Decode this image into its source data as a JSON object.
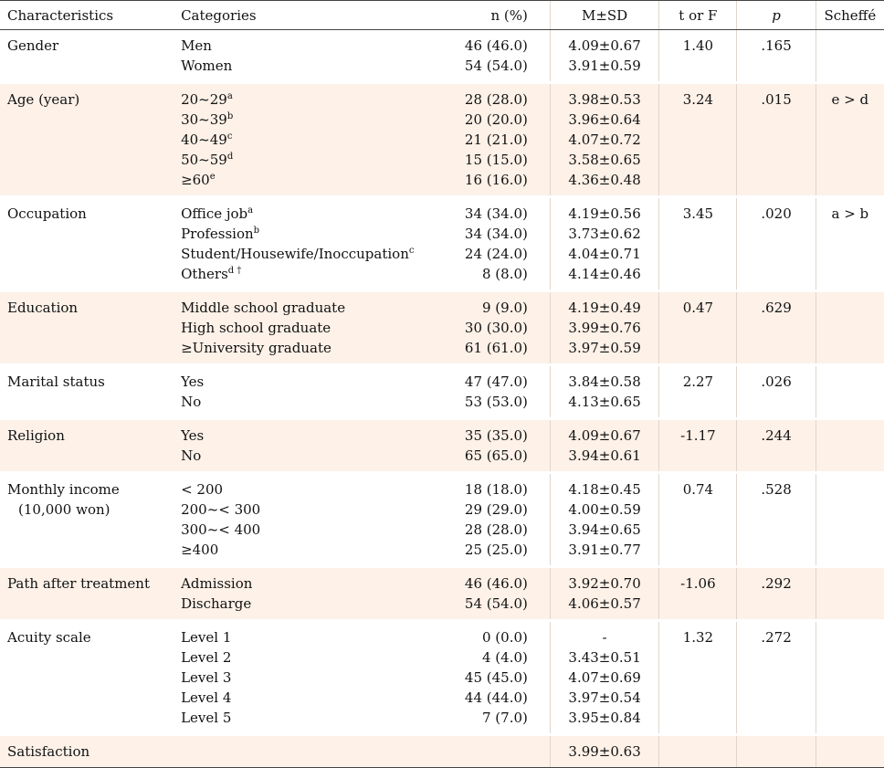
{
  "headers": {
    "characteristics": "Characteristics",
    "categories": "Categories",
    "n": "n (%)",
    "msd": "M±SD",
    "tf": "t or F",
    "p": "p",
    "scheffe": "Scheffé"
  },
  "rows": [
    {
      "characteristic": "Gender",
      "categories": [
        {
          "label": "Men",
          "sup": ""
        },
        {
          "label": "Women",
          "sup": ""
        }
      ],
      "n": [
        "46 (46.0)",
        "54 (54.0)"
      ],
      "msd": [
        "4.09±0.67",
        "3.91±0.59"
      ],
      "tf": "1.40",
      "p": ".165",
      "scheffe": ""
    },
    {
      "characteristic": "Age (year)",
      "categories": [
        {
          "label": "20~29",
          "sup": "a"
        },
        {
          "label": "30~39",
          "sup": "b"
        },
        {
          "label": "40~49",
          "sup": "c"
        },
        {
          "label": "50~59",
          "sup": "d"
        },
        {
          "label": "≥60",
          "sup": "e"
        }
      ],
      "n": [
        "28 (28.0)",
        "20 (20.0)",
        "21 (21.0)",
        "15 (15.0)",
        "16 (16.0)"
      ],
      "msd": [
        "3.98±0.53",
        "3.96±0.64",
        "4.07±0.72",
        "3.58±0.65",
        "4.36±0.48"
      ],
      "tf": "3.24",
      "p": ".015",
      "scheffe": "e > d"
    },
    {
      "characteristic": "Occupation",
      "categories": [
        {
          "label": "Office job",
          "sup": "a"
        },
        {
          "label": "Profession",
          "sup": "b"
        },
        {
          "label": "Student/Housewife/Inoccupation",
          "sup": "c"
        },
        {
          "label": "Others",
          "sup": "d †"
        }
      ],
      "n": [
        "34 (34.0)",
        "34 (34.0)",
        "24 (24.0)",
        "8 (8.0)"
      ],
      "msd": [
        "4.19±0.56",
        "3.73±0.62",
        "4.04±0.71",
        "4.14±0.46"
      ],
      "tf": "3.45",
      "p": ".020",
      "scheffe": "a > b"
    },
    {
      "characteristic": "Education",
      "categories": [
        {
          "label": "Middle school graduate",
          "sup": ""
        },
        {
          "label": "High school graduate",
          "sup": ""
        },
        {
          "label": "≥University graduate",
          "sup": ""
        }
      ],
      "n": [
        "9 (9.0)",
        "30 (30.0)",
        "61 (61.0)"
      ],
      "msd": [
        "4.19±0.49",
        "3.99±0.76",
        "3.97±0.59"
      ],
      "tf": "0.47",
      "p": ".629",
      "scheffe": ""
    },
    {
      "characteristic": "Marital status",
      "categories": [
        {
          "label": "Yes",
          "sup": ""
        },
        {
          "label": "No",
          "sup": ""
        }
      ],
      "n": [
        "47 (47.0)",
        "53 (53.0)"
      ],
      "msd": [
        "3.84±0.58",
        "4.13±0.65"
      ],
      "tf": "2.27",
      "p": ".026",
      "scheffe": ""
    },
    {
      "characteristic": "Religion",
      "categories": [
        {
          "label": "Yes",
          "sup": ""
        },
        {
          "label": "No",
          "sup": ""
        }
      ],
      "n": [
        "35 (35.0)",
        "65 (65.0)"
      ],
      "msd": [
        "4.09±0.67",
        "3.94±0.61"
      ],
      "tf": "-1.17",
      "p": ".244",
      "scheffe": ""
    },
    {
      "characteristic": "Monthly income",
      "characteristic_sub": "(10,000 won)",
      "categories": [
        {
          "label": "< 200",
          "sup": ""
        },
        {
          "label": "200~< 300",
          "sup": ""
        },
        {
          "label": "300~< 400",
          "sup": ""
        },
        {
          "label": "≥400",
          "sup": ""
        }
      ],
      "n": [
        "18 (18.0)",
        "29 (29.0)",
        "28 (28.0)",
        "25 (25.0)"
      ],
      "msd": [
        "4.18±0.45",
        "4.00±0.59",
        "3.94±0.65",
        "3.91±0.77"
      ],
      "tf": "0.74",
      "p": ".528",
      "scheffe": ""
    },
    {
      "characteristic": "Path after treatment",
      "categories": [
        {
          "label": "Admission",
          "sup": ""
        },
        {
          "label": "Discharge",
          "sup": ""
        }
      ],
      "n": [
        "46 (46.0)",
        "54 (54.0)"
      ],
      "msd": [
        "3.92±0.70",
        "4.06±0.57"
      ],
      "tf": "-1.06",
      "p": ".292",
      "scheffe": ""
    },
    {
      "characteristic": "Acuity scale",
      "categories": [
        {
          "label": "Level 1",
          "sup": ""
        },
        {
          "label": "Level 2",
          "sup": ""
        },
        {
          "label": "Level 3",
          "sup": ""
        },
        {
          "label": "Level 4",
          "sup": ""
        },
        {
          "label": "Level 5",
          "sup": ""
        }
      ],
      "n": [
        "0 (0.0)",
        "4 (4.0)",
        "45 (45.0)",
        "44 (44.0)",
        "7 (7.0)"
      ],
      "msd": [
        "-",
        "3.43±0.51",
        "4.07±0.69",
        "3.97±0.54",
        "3.95±0.84"
      ],
      "tf": "1.32",
      "p": ".272",
      "scheffe": ""
    },
    {
      "characteristic": "Satisfaction",
      "categories": [],
      "n": [],
      "msd": [
        "3.99±0.63"
      ],
      "tf": "",
      "p": "",
      "scheffe": ""
    }
  ]
}
